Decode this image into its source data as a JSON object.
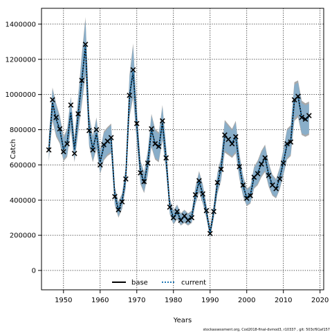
{
  "chart_data": {
    "type": "line",
    "xlabel": "Years",
    "ylabel": "Catch",
    "xlim": [
      1944,
      2021
    ],
    "ylim": [
      -110000,
      1490000
    ],
    "x_ticks": [
      1950,
      1960,
      1970,
      1980,
      1990,
      2000,
      2010,
      2020
    ],
    "y_ticks": [
      0,
      200000,
      400000,
      600000,
      800000,
      1000000,
      1200000,
      1400000
    ],
    "grid": true,
    "legend_position": "bottom-center",
    "footnote": "stockassessment.org, Cod2018-final-dvmod3, r10337 , git: 503cf91af157",
    "years": [
      1946,
      1947,
      1948,
      1949,
      1950,
      1951,
      1952,
      1953,
      1954,
      1955,
      1956,
      1957,
      1958,
      1959,
      1960,
      1961,
      1962,
      1963,
      1964,
      1965,
      1966,
      1967,
      1968,
      1969,
      1970,
      1971,
      1972,
      1973,
      1974,
      1975,
      1976,
      1977,
      1978,
      1979,
      1980,
      1981,
      1982,
      1983,
      1984,
      1985,
      1986,
      1987,
      1988,
      1989,
      1990,
      1991,
      1992,
      1993,
      1994,
      1995,
      1996,
      1997,
      1998,
      1999,
      2000,
      2001,
      2002,
      2003,
      2004,
      2005,
      2006,
      2007,
      2008,
      2009,
      2010,
      2011,
      2012,
      2013,
      2014,
      2015,
      2016,
      2017
    ],
    "observed": [
      685000,
      970000,
      870000,
      805000,
      675000,
      720000,
      940000,
      665000,
      890000,
      1080000,
      1285000,
      795000,
      685000,
      800000,
      600000,
      715000,
      735000,
      755000,
      420000,
      345000,
      390000,
      520000,
      995000,
      1140000,
      835000,
      555000,
      505000,
      610000,
      805000,
      720000,
      705000,
      850000,
      640000,
      360000,
      300000,
      335000,
      285000,
      310000,
      285000,
      300000,
      430000,
      510000,
      435000,
      340000,
      210000,
      335000,
      500000,
      575000,
      770000,
      745000,
      720000,
      760000,
      590000,
      485000,
      410000,
      425000,
      530000,
      550000,
      605000,
      640000,
      540000,
      485000,
      465000,
      520000,
      610000,
      720000,
      730000,
      970000,
      990000,
      870000,
      860000,
      880000
    ],
    "series": [
      {
        "name": "base",
        "color": "#000000",
        "values": [
          685000,
          955000,
          860000,
          800000,
          690000,
          725000,
          900000,
          685000,
          885000,
          1080000,
          1280000,
          800000,
          690000,
          780000,
          615000,
          705000,
          735000,
          750000,
          425000,
          345000,
          395000,
          530000,
          990000,
          1130000,
          830000,
          560000,
          500000,
          610000,
          800000,
          720000,
          700000,
          840000,
          635000,
          365000,
          300000,
          330000,
          290000,
          305000,
          290000,
          305000,
          425000,
          505000,
          435000,
          335000,
          215000,
          335000,
          495000,
          580000,
          765000,
          745000,
          725000,
          760000,
          595000,
          480000,
          415000,
          430000,
          530000,
          555000,
          605000,
          640000,
          545000,
          485000,
          465000,
          525000,
          615000,
          715000,
          735000,
          965000,
          990000,
          870000,
          855000,
          875000
        ],
        "ci_lower": [
          620000,
          850000,
          760000,
          720000,
          620000,
          645000,
          800000,
          615000,
          780000,
          940000,
          1110000,
          705000,
          615000,
          690000,
          545000,
          625000,
          650000,
          665000,
          370000,
          300000,
          350000,
          470000,
          870000,
          980000,
          730000,
          490000,
          440000,
          540000,
          700000,
          630000,
          615000,
          740000,
          560000,
          320000,
          260000,
          290000,
          255000,
          270000,
          255000,
          270000,
          375000,
          445000,
          380000,
          295000,
          185000,
          295000,
          435000,
          510000,
          670000,
          655000,
          640000,
          665000,
          520000,
          420000,
          365000,
          380000,
          465000,
          485000,
          530000,
          560000,
          475000,
          425000,
          410000,
          460000,
          540000,
          630000,
          650000,
          850000,
          870000,
          770000,
          760000,
          770000
        ],
        "ci_upper": [
          760000,
          1040000,
          950000,
          880000,
          760000,
          805000,
          990000,
          755000,
          990000,
          1230000,
          1440000,
          890000,
          765000,
          870000,
          680000,
          790000,
          815000,
          835000,
          475000,
          390000,
          440000,
          590000,
          1110000,
          1290000,
          920000,
          625000,
          560000,
          680000,
          890000,
          805000,
          785000,
          940000,
          710000,
          410000,
          340000,
          375000,
          325000,
          345000,
          325000,
          340000,
          475000,
          565000,
          490000,
          375000,
          240000,
          375000,
          555000,
          645000,
          855000,
          830000,
          805000,
          850000,
          665000,
          540000,
          465000,
          480000,
          590000,
          625000,
          680000,
          715000,
          610000,
          545000,
          520000,
          585000,
          690000,
          805000,
          825000,
          1070000,
          1080000,
          965000,
          950000,
          960000
        ]
      },
      {
        "name": "current",
        "color": "#1f77b4",
        "values": [
          685000,
          955000,
          860000,
          800000,
          690000,
          725000,
          900000,
          685000,
          885000,
          1080000,
          1280000,
          800000,
          690000,
          780000,
          615000,
          705000,
          735000,
          750000,
          425000,
          345000,
          395000,
          530000,
          990000,
          1130000,
          830000,
          560000,
          500000,
          610000,
          800000,
          720000,
          700000,
          840000,
          635000,
          365000,
          300000,
          330000,
          290000,
          305000,
          290000,
          305000,
          425000,
          505000,
          435000,
          335000,
          215000,
          335000,
          495000,
          580000,
          765000,
          745000,
          725000,
          760000,
          595000,
          480000,
          415000,
          430000,
          530000,
          555000,
          605000,
          640000,
          545000,
          485000,
          465000,
          525000,
          615000,
          715000,
          735000,
          965000,
          990000,
          870000,
          855000,
          875000
        ],
        "ci_lower": [
          630000,
          865000,
          775000,
          730000,
          630000,
          655000,
          815000,
          625000,
          795000,
          960000,
          1130000,
          715000,
          625000,
          700000,
          555000,
          635000,
          660000,
          675000,
          378000,
          307000,
          357000,
          478000,
          885000,
          1000000,
          742000,
          498000,
          448000,
          548000,
          712000,
          640000,
          625000,
          752000,
          570000,
          326000,
          266000,
          296000,
          260000,
          275000,
          260000,
          275000,
          382000,
          452000,
          387000,
          300000,
          190000,
          300000,
          443000,
          518000,
          682000,
          666000,
          650000,
          676000,
          530000,
          428000,
          372000,
          386000,
          474000,
          494000,
          540000,
          570000,
          484000,
          433000,
          417000,
          468000,
          549000,
          640000,
          660000,
          865000,
          885000,
          780000,
          770000,
          780000
        ],
        "ci_upper": [
          745000,
          1030000,
          940000,
          870000,
          750000,
          795000,
          980000,
          745000,
          975000,
          1210000,
          1420000,
          880000,
          755000,
          860000,
          670000,
          780000,
          805000,
          825000,
          468000,
          384000,
          433000,
          582000,
          1095000,
          1270000,
          910000,
          618000,
          553000,
          672000,
          880000,
          795000,
          775000,
          930000,
          702000,
          405000,
          335000,
          370000,
          320000,
          340000,
          320000,
          336000,
          468000,
          556000,
          482000,
          370000,
          236000,
          370000,
          548000,
          636000,
          845000,
          820000,
          795000,
          840000,
          656000,
          532000,
          458000,
          473000,
          582000,
          615000,
          670000,
          705000,
          602000,
          538000,
          513000,
          577000,
          680000,
          795000,
          815000,
          1055000,
          1068000,
          952000,
          938000,
          948000
        ]
      }
    ]
  }
}
